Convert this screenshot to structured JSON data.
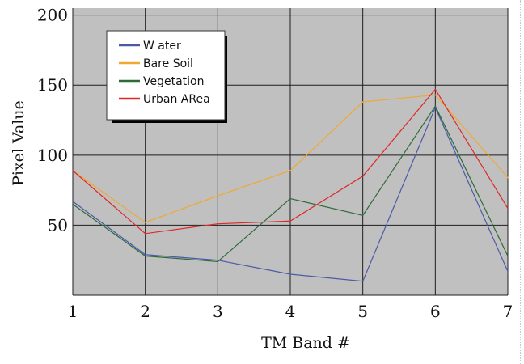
{
  "chart_data": {
    "type": "line",
    "xlabel": "TM Band #",
    "ylabel": "Pixel Value",
    "x": [
      1,
      2,
      3,
      4,
      5,
      6,
      7
    ],
    "xlim": [
      1,
      7
    ],
    "ylim": [
      0,
      205
    ],
    "yticks": [
      50,
      100,
      150,
      200
    ],
    "grid": true,
    "plot_background": "#c0c0c0",
    "grid_color": "#1e1e1e",
    "legend_position": "top-left",
    "series": [
      {
        "name": "W ater",
        "color": "#4a5aa8",
        "values": [
          67,
          29,
          25,
          15,
          10,
          134,
          17
        ]
      },
      {
        "name": "Bare Soil",
        "color": "#f0a830",
        "values": [
          89,
          52,
          71,
          89,
          138,
          143,
          84
        ]
      },
      {
        "name": "Vegetation",
        "color": "#2e6a3a",
        "values": [
          65,
          28,
          24,
          69,
          57,
          135,
          28
        ]
      },
      {
        "name": "Urban ARea",
        "color": "#e02828",
        "values": [
          89,
          44,
          51,
          53,
          85,
          147,
          62
        ]
      }
    ]
  }
}
